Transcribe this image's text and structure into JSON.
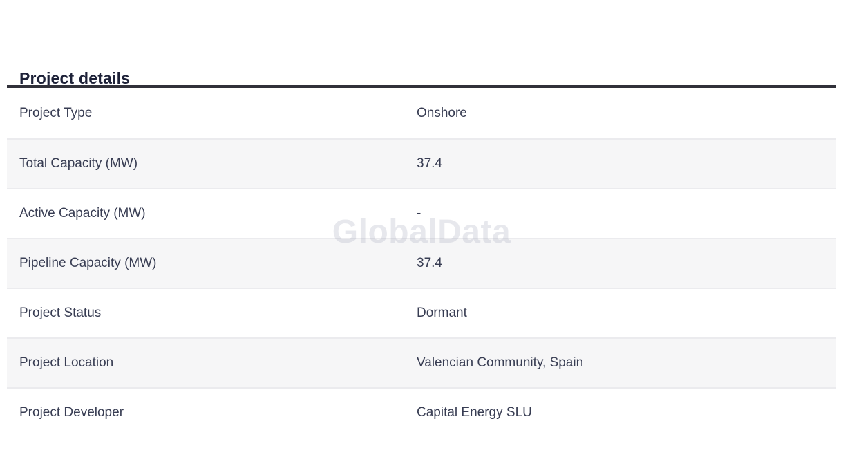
{
  "page": {
    "title": "Project details",
    "watermark": "GlobalData"
  },
  "table": {
    "rows": [
      {
        "label": "Project Type",
        "value": "Onshore"
      },
      {
        "label": "Total Capacity (MW)",
        "value": "37.4"
      },
      {
        "label": "Active Capacity (MW)",
        "value": "-"
      },
      {
        "label": "Pipeline Capacity (MW)",
        "value": "37.4"
      },
      {
        "label": "Project Status",
        "value": "Dormant"
      },
      {
        "label": "Project Location",
        "value": "Valencian Community, Spain"
      },
      {
        "label": "Project Developer",
        "value": "Capital Energy SLU"
      }
    ]
  },
  "colors": {
    "title_text": "#1d2138",
    "row_text": "#383d53",
    "header_rule": "#31313a",
    "row_alt_bg": "#f6f6f7",
    "row_divider": "#ebebee",
    "watermark": "#eeeef2"
  }
}
